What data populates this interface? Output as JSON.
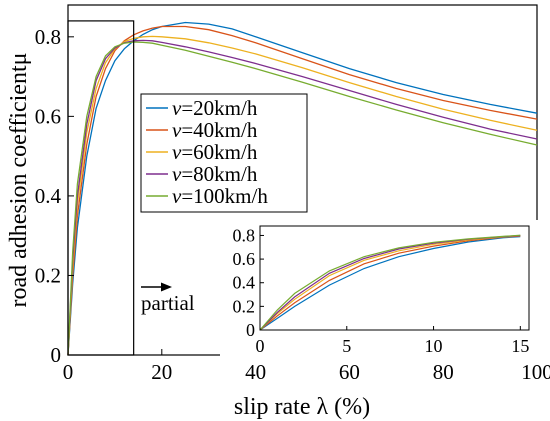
{
  "chart_data": [
    {
      "type": "line",
      "xlabel": "slip rate λ (%)",
      "ylabel": "road adhesion coefficientμ",
      "xlim": [
        0,
        100
      ],
      "ylim": [
        0,
        0.88
      ],
      "xticks": [
        0,
        20,
        40,
        60,
        80,
        100
      ],
      "xtick_labels": [
        "0",
        "20",
        "40",
        "60",
        "80",
        "100"
      ],
      "yticks": [
        0,
        0.2,
        0.4,
        0.6,
        0.8
      ],
      "ytick_labels": [
        "0",
        "0.2",
        "0.4",
        "0.6",
        "0.8"
      ],
      "grid": false,
      "legend": "center-right",
      "x": [
        0,
        1,
        2,
        4,
        6,
        8,
        10,
        12,
        14,
        16,
        18,
        20,
        25,
        30,
        35,
        40,
        50,
        60,
        70,
        80,
        90,
        100
      ],
      "series": [
        {
          "name": "v=20km/h",
          "legend_prefix": "v",
          "legend_rest": "=20km/h",
          "color": "#0072BD",
          "values": [
            0,
            0.18,
            0.32,
            0.5,
            0.62,
            0.69,
            0.74,
            0.77,
            0.79,
            0.806,
            0.818,
            0.826,
            0.836,
            0.832,
            0.82,
            0.8,
            0.76,
            0.72,
            0.685,
            0.655,
            0.63,
            0.608
          ]
        },
        {
          "name": "v=40km/h",
          "legend_prefix": "v",
          "legend_rest": "=40km/h",
          "color": "#D95319",
          "values": [
            0,
            0.2,
            0.35,
            0.53,
            0.65,
            0.72,
            0.765,
            0.79,
            0.805,
            0.815,
            0.822,
            0.826,
            0.826,
            0.818,
            0.803,
            0.785,
            0.745,
            0.705,
            0.67,
            0.64,
            0.615,
            0.593
          ]
        },
        {
          "name": "v=60km/h",
          "legend_prefix": "v",
          "legend_rest": "=60km/h",
          "color": "#EDB120",
          "values": [
            0,
            0.22,
            0.38,
            0.56,
            0.67,
            0.735,
            0.77,
            0.788,
            0.796,
            0.8,
            0.801,
            0.8,
            0.795,
            0.785,
            0.772,
            0.757,
            0.722,
            0.685,
            0.65,
            0.618,
            0.59,
            0.565
          ]
        },
        {
          "name": "v=80km/h",
          "legend_prefix": "v",
          "legend_rest": "=80km/h",
          "color": "#7E2F8E",
          "values": [
            0,
            0.24,
            0.4,
            0.58,
            0.69,
            0.745,
            0.772,
            0.785,
            0.79,
            0.791,
            0.79,
            0.786,
            0.775,
            0.762,
            0.748,
            0.733,
            0.7,
            0.665,
            0.63,
            0.598,
            0.568,
            0.543
          ]
        },
        {
          "name": "v=100km/h",
          "legend_prefix": "v",
          "legend_rest": "=100km/h",
          "color": "#77AC30",
          "values": [
            0,
            0.26,
            0.43,
            0.6,
            0.7,
            0.752,
            0.775,
            0.784,
            0.787,
            0.786,
            0.784,
            0.779,
            0.766,
            0.751,
            0.736,
            0.72,
            0.686,
            0.65,
            0.616,
            0.584,
            0.555,
            0.528
          ]
        }
      ],
      "highlight_box": {
        "x": [
          0,
          14
        ],
        "y": [
          0,
          0.84
        ]
      }
    },
    {
      "type": "line",
      "name": "inset",
      "xlim": [
        0,
        15.5
      ],
      "ylim": [
        0,
        0.88
      ],
      "xticks": [
        0,
        5,
        10,
        15
      ],
      "xtick_labels": [
        "0",
        "5",
        "10",
        "15"
      ],
      "yticks": [
        0,
        0.2,
        0.4,
        0.6,
        0.8
      ],
      "ytick_labels": [
        "0",
        "0.2",
        "0.4",
        "0.6",
        "0.8"
      ],
      "grid": false,
      "x": [
        0,
        1,
        2,
        4,
        6,
        8,
        10,
        12,
        14,
        15
      ],
      "series": [
        {
          "color": "#0072BD",
          "values": [
            0,
            0.1,
            0.2,
            0.38,
            0.52,
            0.62,
            0.69,
            0.745,
            0.78,
            0.79
          ]
        },
        {
          "color": "#D95319",
          "values": [
            0,
            0.12,
            0.23,
            0.42,
            0.56,
            0.65,
            0.71,
            0.755,
            0.785,
            0.795
          ]
        },
        {
          "color": "#EDB120",
          "values": [
            0,
            0.14,
            0.26,
            0.46,
            0.59,
            0.67,
            0.725,
            0.762,
            0.788,
            0.798
          ]
        },
        {
          "color": "#7E2F8E",
          "values": [
            0,
            0.15,
            0.28,
            0.48,
            0.605,
            0.685,
            0.735,
            0.768,
            0.79,
            0.8
          ]
        },
        {
          "color": "#77AC30",
          "values": [
            0,
            0.17,
            0.31,
            0.5,
            0.62,
            0.695,
            0.742,
            0.772,
            0.792,
            0.802
          ]
        }
      ]
    }
  ],
  "annotation": {
    "text": "partial",
    "arrow": "right-arrow"
  }
}
